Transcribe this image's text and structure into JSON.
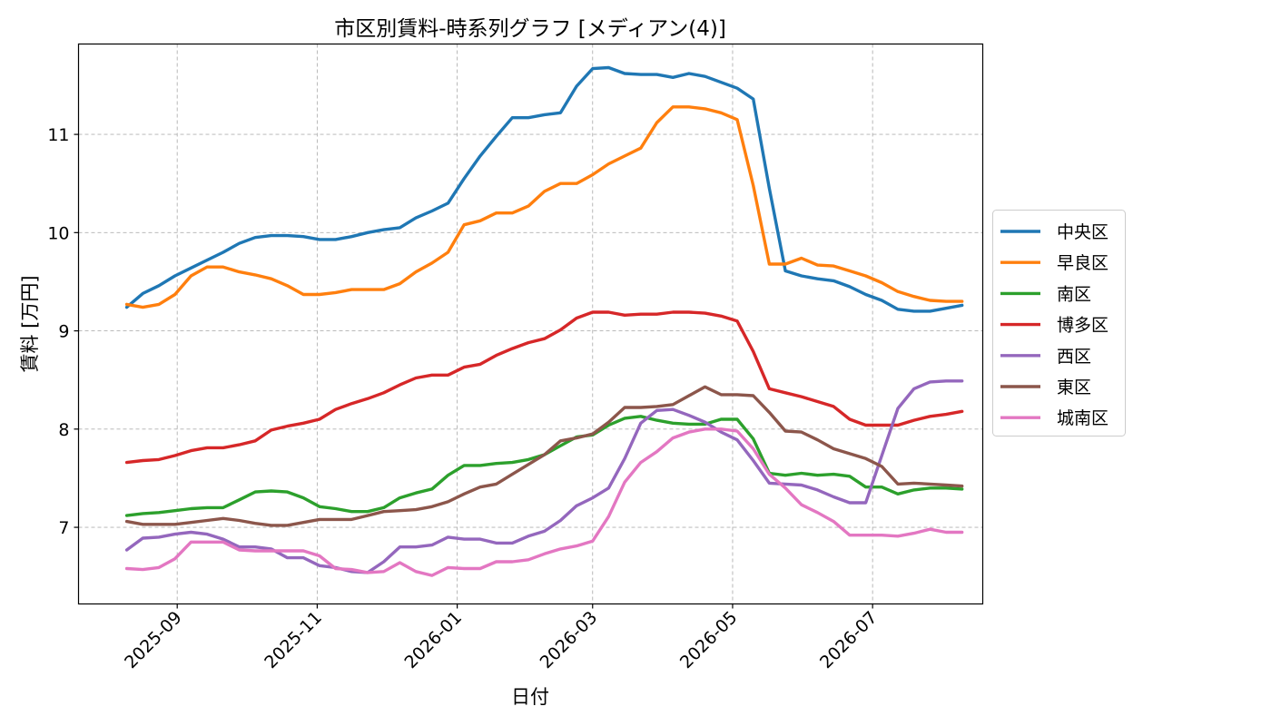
{
  "chart_data": {
    "type": "line",
    "title": "市区別賃料-時系列グラフ [メディアン(4)]",
    "xlabel": "日付",
    "ylabel": "賃料 [万円]",
    "xlim": [
      "2025-07-20",
      "2026-08-18"
    ],
    "ylim": [
      6.22,
      11.92
    ],
    "x_ticks": [
      "2025-09",
      "2025-11",
      "2026-01",
      "2026-03",
      "2026-05",
      "2026-07"
    ],
    "y_ticks": [
      7,
      8,
      9,
      10,
      11
    ],
    "grid": true,
    "legend_position": "outside-right",
    "x": [
      "2025-08-10",
      "2025-08-17",
      "2025-08-24",
      "2025-08-31",
      "2025-09-07",
      "2025-09-14",
      "2025-09-21",
      "2025-09-28",
      "2025-10-05",
      "2025-10-12",
      "2025-10-19",
      "2025-10-26",
      "2025-11-02",
      "2025-11-09",
      "2025-11-16",
      "2025-11-23",
      "2025-11-30",
      "2025-12-07",
      "2025-12-14",
      "2025-12-21",
      "2025-12-28",
      "2026-01-04",
      "2026-01-11",
      "2026-01-18",
      "2026-01-25",
      "2026-02-01",
      "2026-02-08",
      "2026-02-15",
      "2026-02-22",
      "2026-03-01",
      "2026-03-08",
      "2026-03-15",
      "2026-03-22",
      "2026-03-29",
      "2026-04-05",
      "2026-04-12",
      "2026-04-19",
      "2026-04-26",
      "2026-05-03",
      "2026-05-10",
      "2026-05-17",
      "2026-05-24",
      "2026-05-31",
      "2026-06-07",
      "2026-06-14",
      "2026-06-21",
      "2026-06-28",
      "2026-07-05",
      "2026-07-12",
      "2026-07-19",
      "2026-07-26",
      "2026-08-02",
      "2026-08-09"
    ],
    "series": [
      {
        "name": "中央区",
        "color": "#1f77b4",
        "values": [
          9.24,
          9.38,
          9.46,
          9.56,
          9.64,
          9.72,
          9.8,
          9.89,
          9.95,
          9.97,
          9.97,
          9.96,
          9.93,
          9.93,
          9.96,
          10.0,
          10.03,
          10.05,
          10.15,
          10.22,
          10.3,
          10.55,
          10.78,
          10.98,
          11.17,
          11.17,
          11.2,
          11.22,
          11.49,
          11.67,
          11.68,
          11.62,
          11.61,
          11.61,
          11.58,
          11.62,
          11.59,
          11.53,
          11.47,
          11.36,
          10.45,
          9.61,
          9.56,
          9.53,
          9.51,
          9.45,
          9.37,
          9.31,
          9.22,
          9.2,
          9.2,
          9.23,
          9.26
        ]
      },
      {
        "name": "早良区",
        "color": "#ff7f0e",
        "values": [
          9.27,
          9.24,
          9.27,
          9.37,
          9.56,
          9.65,
          9.65,
          9.6,
          9.57,
          9.53,
          9.46,
          9.37,
          9.37,
          9.39,
          9.42,
          9.42,
          9.42,
          9.48,
          9.6,
          9.69,
          9.8,
          10.08,
          10.12,
          10.2,
          10.2,
          10.27,
          10.42,
          10.5,
          10.5,
          10.59,
          10.7,
          10.78,
          10.86,
          11.12,
          11.28,
          11.28,
          11.26,
          11.22,
          11.15,
          10.48,
          9.68,
          9.68,
          9.74,
          9.67,
          9.66,
          9.61,
          9.56,
          9.49,
          9.4,
          9.35,
          9.31,
          9.3,
          9.3
        ]
      },
      {
        "name": "南区",
        "color": "#2ca02c",
        "values": [
          7.12,
          7.14,
          7.15,
          7.17,
          7.19,
          7.2,
          7.2,
          7.28,
          7.36,
          7.37,
          7.36,
          7.3,
          7.21,
          7.19,
          7.16,
          7.16,
          7.2,
          7.3,
          7.35,
          7.39,
          7.53,
          7.63,
          7.63,
          7.65,
          7.66,
          7.69,
          7.74,
          7.83,
          7.92,
          7.94,
          8.04,
          8.11,
          8.13,
          8.09,
          8.06,
          8.05,
          8.05,
          8.1,
          8.1,
          7.9,
          7.55,
          7.53,
          7.55,
          7.53,
          7.54,
          7.52,
          7.41,
          7.41,
          7.34,
          7.38,
          7.4,
          7.4,
          7.39
        ]
      },
      {
        "name": "博多区",
        "color": "#d62728",
        "values": [
          7.66,
          7.68,
          7.69,
          7.73,
          7.78,
          7.81,
          7.81,
          7.84,
          7.88,
          7.99,
          8.03,
          8.06,
          8.1,
          8.2,
          8.26,
          8.31,
          8.37,
          8.45,
          8.52,
          8.55,
          8.55,
          8.63,
          8.66,
          8.75,
          8.82,
          8.88,
          8.92,
          9.01,
          9.13,
          9.19,
          9.19,
          9.16,
          9.17,
          9.17,
          9.19,
          9.19,
          9.18,
          9.15,
          9.1,
          8.79,
          8.41,
          8.37,
          8.33,
          8.28,
          8.23,
          8.1,
          8.04,
          8.04,
          8.04,
          8.09,
          8.13,
          8.15,
          8.18
        ]
      },
      {
        "name": "西区",
        "color": "#9467bd",
        "values": [
          6.77,
          6.89,
          6.9,
          6.93,
          6.95,
          6.93,
          6.88,
          6.8,
          6.8,
          6.78,
          6.69,
          6.69,
          6.61,
          6.59,
          6.55,
          6.54,
          6.65,
          6.8,
          6.8,
          6.82,
          6.9,
          6.88,
          6.88,
          6.84,
          6.84,
          6.91,
          6.96,
          7.07,
          7.22,
          7.3,
          7.4,
          7.7,
          8.06,
          8.19,
          8.2,
          8.14,
          8.07,
          7.97,
          7.89,
          7.68,
          7.45,
          7.44,
          7.43,
          7.38,
          7.31,
          7.25,
          7.25,
          7.73,
          8.21,
          8.41,
          8.48,
          8.49,
          8.49
        ]
      },
      {
        "name": "東区",
        "color": "#8c564b",
        "values": [
          7.06,
          7.03,
          7.03,
          7.03,
          7.05,
          7.07,
          7.09,
          7.07,
          7.04,
          7.02,
          7.02,
          7.05,
          7.08,
          7.08,
          7.08,
          7.12,
          7.16,
          7.17,
          7.18,
          7.21,
          7.26,
          7.34,
          7.41,
          7.44,
          7.54,
          7.64,
          7.74,
          7.88,
          7.91,
          7.95,
          8.07,
          8.22,
          8.22,
          8.23,
          8.25,
          8.34,
          8.43,
          8.35,
          8.35,
          8.34,
          8.17,
          7.98,
          7.97,
          7.89,
          7.8,
          7.75,
          7.7,
          7.62,
          7.44,
          7.45,
          7.44,
          7.43,
          7.42
        ]
      },
      {
        "name": "城南区",
        "color": "#e377c2",
        "values": [
          6.58,
          6.57,
          6.59,
          6.68,
          6.85,
          6.85,
          6.85,
          6.77,
          6.76,
          6.76,
          6.76,
          6.76,
          6.71,
          6.58,
          6.57,
          6.54,
          6.55,
          6.64,
          6.55,
          6.51,
          6.59,
          6.58,
          6.58,
          6.65,
          6.65,
          6.67,
          6.73,
          6.78,
          6.81,
          6.86,
          7.11,
          7.46,
          7.66,
          7.77,
          7.91,
          7.97,
          8.0,
          8.0,
          7.98,
          7.8,
          7.54,
          7.4,
          7.23,
          7.15,
          7.06,
          6.92,
          6.92,
          6.92,
          6.91,
          6.94,
          6.98,
          6.95,
          6.95
        ]
      }
    ]
  }
}
